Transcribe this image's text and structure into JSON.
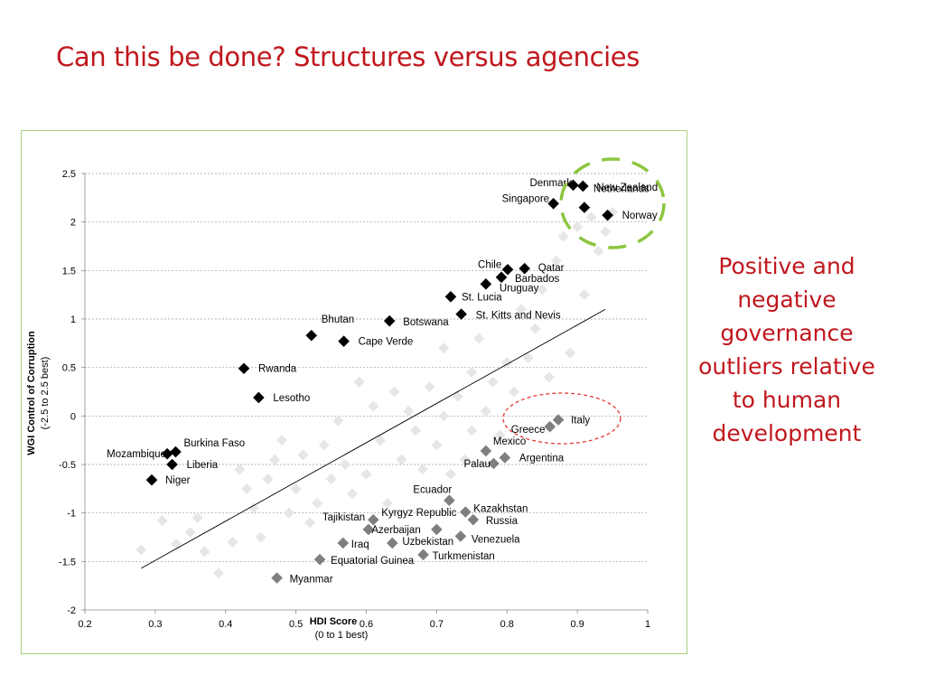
{
  "slide": {
    "title": "Can this be done? Structures versus agencies",
    "note": "Positive and negative governance outliers relative to human development"
  },
  "colors": {
    "title": "#c0171d",
    "positive_marker": "#000000",
    "negative_marker": "#7f7f7f",
    "background_marker": "#e6e6e6",
    "positive_circle": "#8cc63f",
    "negative_circle": "#e53935",
    "chart_border": "#a9cf7f"
  },
  "chart_data": {
    "type": "scatter",
    "xlabel": "HDI Score",
    "xlabel_sub": "(0 to 1 best)",
    "ylabel": "WGI Control of Corruption",
    "ylabel_sub": "(-2.5 to 2.5 best)",
    "xlim": [
      0.2,
      1
    ],
    "ylim": [
      -2,
      2.5
    ],
    "xticks": [
      0.2,
      0.3,
      0.4,
      0.5,
      0.6,
      0.7,
      0.8,
      0.9,
      1
    ],
    "xtick_labels": [
      "0.2",
      "0.3",
      "0.4",
      "0.5",
      "0.6",
      "0.7",
      "0.8",
      "0.9",
      "1"
    ],
    "yticks": [
      -2,
      -1.5,
      -1,
      -0.5,
      0,
      0.5,
      1,
      1.5,
      2,
      2.5
    ],
    "ytick_labels": [
      "-2",
      "-1.5",
      "-1",
      "-0.5",
      "0",
      "0.5",
      "1",
      "1.5",
      "2",
      "2.5"
    ],
    "grid": "horizontal-dashed",
    "trendline": [
      [
        0.28,
        -1.57
      ],
      [
        0.94,
        1.1
      ]
    ],
    "series": [
      {
        "group": "positive",
        "points": [
          {
            "label": "Denmark",
            "x": 0.894,
            "y": 2.38
          },
          {
            "label": "New Zealand",
            "x": 0.908,
            "y": 2.37
          },
          {
            "label": "Singapore",
            "x": 0.866,
            "y": 2.19
          },
          {
            "label": "Netherlands",
            "x": 0.91,
            "y": 2.15
          },
          {
            "label": "Norway",
            "x": 0.943,
            "y": 2.07
          },
          {
            "label": "Chile",
            "x": 0.801,
            "y": 1.51
          },
          {
            "label": "Qatar",
            "x": 0.825,
            "y": 1.52
          },
          {
            "label": "Barbados",
            "x": 0.792,
            "y": 1.43
          },
          {
            "label": "Uruguay",
            "x": 0.77,
            "y": 1.36
          },
          {
            "label": "St. Lucia",
            "x": 0.72,
            "y": 1.23
          },
          {
            "label": "St. Kitts and Nevis",
            "x": 0.735,
            "y": 1.05
          },
          {
            "label": "Botswana",
            "x": 0.633,
            "y": 0.98
          },
          {
            "label": "Bhutan",
            "x": 0.522,
            "y": 0.83
          },
          {
            "label": "Cape Verde",
            "x": 0.568,
            "y": 0.77
          },
          {
            "label": "Rwanda",
            "x": 0.426,
            "y": 0.49
          },
          {
            "label": "Lesotho",
            "x": 0.447,
            "y": 0.19
          },
          {
            "label": "Burkina Faso",
            "x": 0.329,
            "y": -0.37
          },
          {
            "label": "Mozambique",
            "x": 0.317,
            "y": -0.39
          },
          {
            "label": "Liberia",
            "x": 0.324,
            "y": -0.5
          },
          {
            "label": "Niger",
            "x": 0.295,
            "y": -0.66
          }
        ]
      },
      {
        "group": "negative",
        "points": [
          {
            "label": "Italy",
            "x": 0.873,
            "y": -0.04
          },
          {
            "label": "Greece",
            "x": 0.861,
            "y": -0.11
          },
          {
            "label": "Mexico",
            "x": 0.77,
            "y": -0.36
          },
          {
            "label": "Argentina",
            "x": 0.797,
            "y": -0.43
          },
          {
            "label": "Palau",
            "x": 0.781,
            "y": -0.49
          },
          {
            "label": "Ecuador",
            "x": 0.718,
            "y": -0.87
          },
          {
            "label": "Kazakhstan",
            "x": 0.741,
            "y": -0.99
          },
          {
            "label": "Russia",
            "x": 0.752,
            "y": -1.07
          },
          {
            "label": "Kyrgyz Republic",
            "x": 0.61,
            "y": -1.07
          },
          {
            "label": "Tajikistan",
            "x": 0.603,
            "y": -1.17
          },
          {
            "label": "Azerbaijan",
            "x": 0.7,
            "y": -1.17
          },
          {
            "label": "Venezuela",
            "x": 0.734,
            "y": -1.24
          },
          {
            "label": "Iraq",
            "x": 0.567,
            "y": -1.31
          },
          {
            "label": "Uzbekistan",
            "x": 0.637,
            "y": -1.31
          },
          {
            "label": "Turkmenistan",
            "x": 0.681,
            "y": -1.43
          },
          {
            "label": "Equatorial Guinea",
            "x": 0.534,
            "y": -1.48
          },
          {
            "label": "Myanmar",
            "x": 0.473,
            "y": -1.67
          }
        ]
      },
      {
        "group": "background",
        "points": [
          {
            "x": 0.28,
            "y": -1.38
          },
          {
            "x": 0.31,
            "y": -1.08
          },
          {
            "x": 0.33,
            "y": -1.32
          },
          {
            "x": 0.35,
            "y": -1.2
          },
          {
            "x": 0.36,
            "y": -1.05
          },
          {
            "x": 0.37,
            "y": -1.4
          },
          {
            "x": 0.39,
            "y": -1.62
          },
          {
            "x": 0.41,
            "y": -1.3
          },
          {
            "x": 0.42,
            "y": -0.55
          },
          {
            "x": 0.43,
            "y": -0.75
          },
          {
            "x": 0.44,
            "y": -0.95
          },
          {
            "x": 0.45,
            "y": -1.25
          },
          {
            "x": 0.46,
            "y": -0.65
          },
          {
            "x": 0.47,
            "y": -0.45
          },
          {
            "x": 0.48,
            "y": -0.25
          },
          {
            "x": 0.49,
            "y": -1.0
          },
          {
            "x": 0.5,
            "y": -0.75
          },
          {
            "x": 0.51,
            "y": -0.4
          },
          {
            "x": 0.52,
            "y": -1.1
          },
          {
            "x": 0.53,
            "y": -0.9
          },
          {
            "x": 0.54,
            "y": -0.3
          },
          {
            "x": 0.55,
            "y": -0.65
          },
          {
            "x": 0.56,
            "y": -0.05
          },
          {
            "x": 0.57,
            "y": -0.5
          },
          {
            "x": 0.58,
            "y": -0.8
          },
          {
            "x": 0.59,
            "y": 0.35
          },
          {
            "x": 0.6,
            "y": -0.6
          },
          {
            "x": 0.61,
            "y": 0.1
          },
          {
            "x": 0.62,
            "y": -0.25
          },
          {
            "x": 0.63,
            "y": -0.9
          },
          {
            "x": 0.64,
            "y": 0.25
          },
          {
            "x": 0.65,
            "y": -0.45
          },
          {
            "x": 0.66,
            "y": 0.05
          },
          {
            "x": 0.67,
            "y": -0.15
          },
          {
            "x": 0.68,
            "y": -0.55
          },
          {
            "x": 0.69,
            "y": 0.3
          },
          {
            "x": 0.7,
            "y": -0.3
          },
          {
            "x": 0.71,
            "y": 0.0
          },
          {
            "x": 0.71,
            "y": 0.7
          },
          {
            "x": 0.72,
            "y": -0.6
          },
          {
            "x": 0.73,
            "y": 0.2
          },
          {
            "x": 0.74,
            "y": -0.45
          },
          {
            "x": 0.75,
            "y": 0.45
          },
          {
            "x": 0.75,
            "y": -0.15
          },
          {
            "x": 0.76,
            "y": 0.8
          },
          {
            "x": 0.77,
            "y": 0.05
          },
          {
            "x": 0.78,
            "y": 0.35
          },
          {
            "x": 0.79,
            "y": -0.2
          },
          {
            "x": 0.8,
            "y": 0.55
          },
          {
            "x": 0.81,
            "y": 0.25
          },
          {
            "x": 0.82,
            "y": 1.1
          },
          {
            "x": 0.83,
            "y": 0.6
          },
          {
            "x": 0.84,
            "y": 0.9
          },
          {
            "x": 0.85,
            "y": 1.3
          },
          {
            "x": 0.86,
            "y": 0.4
          },
          {
            "x": 0.87,
            "y": 1.6
          },
          {
            "x": 0.88,
            "y": 1.85
          },
          {
            "x": 0.89,
            "y": 0.65
          },
          {
            "x": 0.9,
            "y": 1.95
          },
          {
            "x": 0.91,
            "y": 1.25
          },
          {
            "x": 0.92,
            "y": 2.05
          },
          {
            "x": 0.93,
            "y": 1.7
          },
          {
            "x": 0.94,
            "y": 1.9
          },
          {
            "x": 0.95,
            "y": 2.1
          }
        ]
      }
    ]
  }
}
